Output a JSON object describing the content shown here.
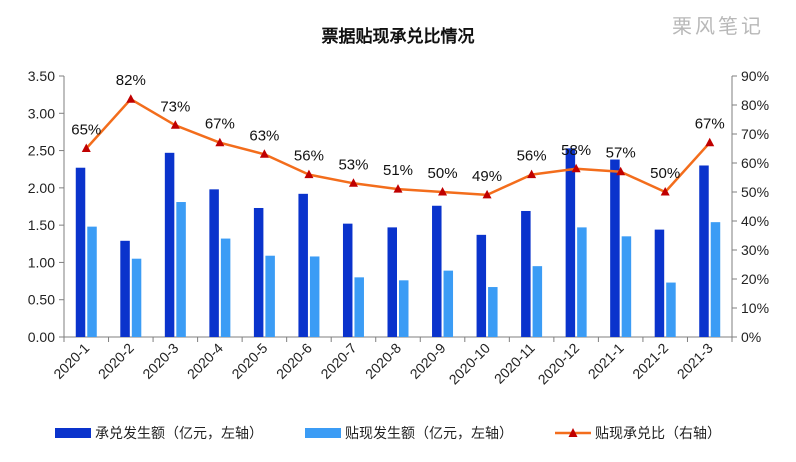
{
  "chart_data": {
    "type": "bar",
    "title": "票据贴现承兑比情况",
    "watermark": "栗风笔记",
    "categories": [
      "2020-1",
      "2020-2",
      "2020-3",
      "2020-4",
      "2020-5",
      "2020-6",
      "2020-7",
      "2020-8",
      "2020-9",
      "2020-10",
      "2020-11",
      "2020-12",
      "2021-1",
      "2021-2",
      "2021-3"
    ],
    "series": [
      {
        "name": "承兑发生额（亿元，左轴）",
        "type": "bar",
        "axis": "left",
        "color": "#0a33cc",
        "values": [
          2.27,
          1.29,
          2.47,
          1.98,
          1.73,
          1.92,
          1.52,
          1.47,
          1.76,
          1.37,
          1.69,
          2.53,
          2.38,
          1.44,
          2.3
        ]
      },
      {
        "name": "贴现发生额（亿元，左轴）",
        "type": "bar",
        "axis": "left",
        "color": "#3b9cf5",
        "values": [
          1.48,
          1.05,
          1.81,
          1.32,
          1.09,
          1.08,
          0.8,
          0.76,
          0.89,
          0.67,
          0.95,
          1.47,
          1.35,
          0.73,
          1.54
        ]
      },
      {
        "name": "贴现承兑比（右轴）",
        "type": "line",
        "axis": "right",
        "color": "#f36d1c",
        "marker_color": "#c00000",
        "values": [
          65,
          82,
          73,
          67,
          63,
          56,
          53,
          51,
          50,
          49,
          56,
          58,
          57,
          50,
          67
        ],
        "labels": [
          "65%",
          "82%",
          "73%",
          "67%",
          "63%",
          "56%",
          "53%",
          "51%",
          "50%",
          "49%",
          "56%",
          "58%",
          "57%",
          "50%",
          "67%"
        ]
      }
    ],
    "y_left": {
      "min": 0,
      "max": 3.5,
      "step": 0.5,
      "ticks": [
        "0.00",
        "0.50",
        "1.00",
        "1.50",
        "2.00",
        "2.50",
        "3.00",
        "3.50"
      ]
    },
    "y_right": {
      "min": 0,
      "max": 90,
      "step": 10,
      "ticks": [
        "0%",
        "10%",
        "20%",
        "30%",
        "40%",
        "50%",
        "60%",
        "70%",
        "80%",
        "90%"
      ]
    },
    "legend_position": "bottom",
    "grid": false
  }
}
